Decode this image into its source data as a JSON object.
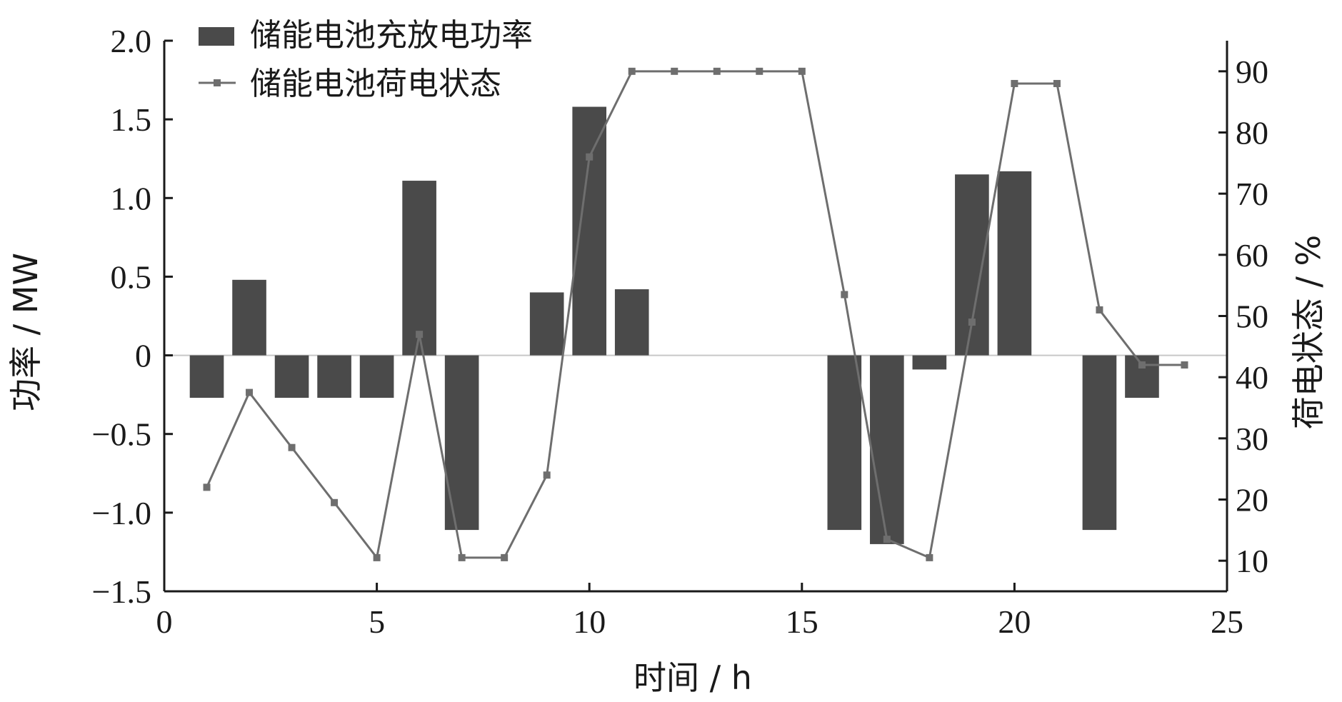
{
  "chart_data": {
    "type": "bar+line",
    "xlabel": "时间 / h",
    "ylabel_left": "功率 / MW",
    "ylabel_right": "荷电状态 / %",
    "xlim": [
      0,
      25
    ],
    "ylim_left": [
      -1.5,
      2.0
    ],
    "ylim_right": [
      5,
      95
    ],
    "x_ticks": [
      "0",
      "5",
      "10",
      "15",
      "20",
      "25"
    ],
    "y_left_ticks": [
      "2.0",
      "1.5",
      "1.0",
      "0.5",
      "0",
      "−0.5",
      "−1.0",
      "−1.5"
    ],
    "y_right_ticks": [
      "90",
      "80",
      "70",
      "60",
      "50",
      "40",
      "30",
      "20",
      "10"
    ],
    "grid": false,
    "legend_position": "top-left",
    "series": [
      {
        "name": "储能电池充放电功率",
        "type": "bar",
        "axis": "left",
        "color": "#4a4a4a",
        "x": [
          1,
          2,
          3,
          4,
          5,
          6,
          7,
          8,
          9,
          10,
          11,
          12,
          13,
          14,
          15,
          16,
          17,
          18,
          19,
          20,
          21,
          22,
          23,
          24
        ],
        "values": [
          -0.27,
          0.48,
          -0.27,
          -0.27,
          -0.27,
          1.11,
          -1.11,
          0,
          0.4,
          1.58,
          0.42,
          0,
          0,
          0,
          0,
          -1.11,
          -1.2,
          -0.09,
          1.15,
          1.17,
          0,
          -1.11,
          -0.27,
          0
        ]
      },
      {
        "name": "储能电池荷电状态",
        "type": "line",
        "axis": "right",
        "color": "#6e6e6e",
        "marker": "square",
        "x": [
          1,
          2,
          3,
          4,
          5,
          6,
          7,
          8,
          9,
          10,
          11,
          12,
          13,
          14,
          15,
          16,
          17,
          18,
          19,
          20,
          21,
          22,
          23,
          24
        ],
        "values": [
          22,
          37.5,
          28.5,
          19.5,
          10.5,
          47,
          10.5,
          10.5,
          24,
          76,
          90,
          90,
          90,
          90,
          90,
          53.5,
          13.5,
          10.5,
          49,
          88,
          88,
          51,
          42,
          42
        ]
      }
    ]
  }
}
